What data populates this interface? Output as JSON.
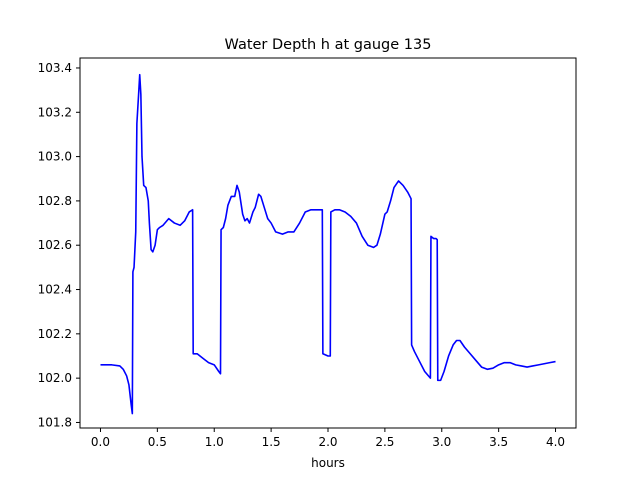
{
  "chart_data": {
    "type": "line",
    "title": "Water Depth h at gauge 135",
    "xlabel": "hours",
    "ylabel": "",
    "xlim": [
      -0.18,
      4.18
    ],
    "ylim": [
      101.775,
      103.445
    ],
    "grid": false,
    "x_ticks": [
      0.0,
      0.5,
      1.0,
      1.5,
      2.0,
      2.5,
      3.0,
      3.5,
      4.0
    ],
    "x_tick_labels": [
      "0.0",
      "0.5",
      "1.0",
      "1.5",
      "2.0",
      "2.5",
      "3.0",
      "3.5",
      "4.0"
    ],
    "y_ticks": [
      101.8,
      102.0,
      102.2,
      102.4,
      102.6,
      102.8,
      103.0,
      103.2,
      103.4
    ],
    "y_tick_labels": [
      "101.8",
      "102.0",
      "102.2",
      "102.4",
      "102.6",
      "102.8",
      "103.0",
      "103.2",
      "103.4"
    ],
    "series": [
      {
        "name": "",
        "color": "#0000ff",
        "points": [
          [
            0.0,
            102.06
          ],
          [
            0.1,
            102.06
          ],
          [
            0.17,
            102.055
          ],
          [
            0.2,
            102.04
          ],
          [
            0.23,
            102.01
          ],
          [
            0.25,
            101.97
          ],
          [
            0.27,
            101.88
          ],
          [
            0.28,
            101.84
          ],
          [
            0.285,
            102.48
          ],
          [
            0.295,
            102.5
          ],
          [
            0.31,
            102.66
          ],
          [
            0.32,
            103.15
          ],
          [
            0.335,
            103.28
          ],
          [
            0.345,
            103.37
          ],
          [
            0.355,
            103.28
          ],
          [
            0.365,
            103.0
          ],
          [
            0.38,
            102.87
          ],
          [
            0.4,
            102.86
          ],
          [
            0.42,
            102.8
          ],
          [
            0.43,
            102.7
          ],
          [
            0.445,
            102.58
          ],
          [
            0.46,
            102.57
          ],
          [
            0.48,
            102.6
          ],
          [
            0.5,
            102.67
          ],
          [
            0.52,
            102.68
          ],
          [
            0.55,
            102.69
          ],
          [
            0.6,
            102.72
          ],
          [
            0.65,
            102.7
          ],
          [
            0.7,
            102.69
          ],
          [
            0.74,
            102.71
          ],
          [
            0.78,
            102.75
          ],
          [
            0.81,
            102.76
          ],
          [
            0.815,
            102.11
          ],
          [
            0.85,
            102.11
          ],
          [
            0.9,
            102.09
          ],
          [
            0.95,
            102.07
          ],
          [
            1.0,
            102.06
          ],
          [
            1.04,
            102.03
          ],
          [
            1.055,
            102.02
          ],
          [
            1.06,
            102.67
          ],
          [
            1.08,
            102.68
          ],
          [
            1.1,
            102.72
          ],
          [
            1.12,
            102.78
          ],
          [
            1.15,
            102.82
          ],
          [
            1.18,
            102.82
          ],
          [
            1.2,
            102.87
          ],
          [
            1.22,
            102.84
          ],
          [
            1.25,
            102.74
          ],
          [
            1.27,
            102.71
          ],
          [
            1.29,
            102.72
          ],
          [
            1.31,
            102.7
          ],
          [
            1.34,
            102.75
          ],
          [
            1.36,
            102.77
          ],
          [
            1.39,
            102.83
          ],
          [
            1.41,
            102.82
          ],
          [
            1.44,
            102.77
          ],
          [
            1.47,
            102.72
          ],
          [
            1.5,
            102.7
          ],
          [
            1.54,
            102.66
          ],
          [
            1.6,
            102.65
          ],
          [
            1.65,
            102.66
          ],
          [
            1.7,
            102.66
          ],
          [
            1.75,
            102.7
          ],
          [
            1.8,
            102.75
          ],
          [
            1.85,
            102.76
          ],
          [
            1.9,
            102.76
          ],
          [
            1.95,
            102.76
          ],
          [
            1.955,
            102.11
          ],
          [
            2.0,
            102.1
          ],
          [
            2.02,
            102.1
          ],
          [
            2.025,
            102.75
          ],
          [
            2.06,
            102.76
          ],
          [
            2.1,
            102.76
          ],
          [
            2.15,
            102.75
          ],
          [
            2.2,
            102.73
          ],
          [
            2.25,
            102.7
          ],
          [
            2.3,
            102.64
          ],
          [
            2.35,
            102.6
          ],
          [
            2.4,
            102.59
          ],
          [
            2.43,
            102.6
          ],
          [
            2.46,
            102.65
          ],
          [
            2.5,
            102.74
          ],
          [
            2.52,
            102.75
          ],
          [
            2.55,
            102.8
          ],
          [
            2.58,
            102.86
          ],
          [
            2.62,
            102.89
          ],
          [
            2.66,
            102.87
          ],
          [
            2.7,
            102.84
          ],
          [
            2.73,
            102.81
          ],
          [
            2.735,
            102.15
          ],
          [
            2.76,
            102.12
          ],
          [
            2.8,
            102.08
          ],
          [
            2.85,
            102.03
          ],
          [
            2.9,
            102.0
          ],
          [
            2.905,
            102.64
          ],
          [
            2.93,
            102.63
          ],
          [
            2.95,
            102.63
          ],
          [
            2.96,
            102.625
          ],
          [
            2.965,
            101.99
          ],
          [
            2.99,
            101.99
          ],
          [
            3.02,
            102.03
          ],
          [
            3.06,
            102.1
          ],
          [
            3.1,
            102.15
          ],
          [
            3.13,
            102.17
          ],
          [
            3.16,
            102.17
          ],
          [
            3.2,
            102.14
          ],
          [
            3.25,
            102.11
          ],
          [
            3.3,
            102.08
          ],
          [
            3.35,
            102.05
          ],
          [
            3.4,
            102.04
          ],
          [
            3.45,
            102.045
          ],
          [
            3.5,
            102.06
          ],
          [
            3.55,
            102.07
          ],
          [
            3.6,
            102.07
          ],
          [
            3.65,
            102.06
          ],
          [
            3.7,
            102.055
          ],
          [
            3.75,
            102.05
          ],
          [
            3.8,
            102.055
          ],
          [
            3.85,
            102.06
          ],
          [
            3.9,
            102.065
          ],
          [
            3.95,
            102.07
          ],
          [
            4.0,
            102.075
          ]
        ]
      }
    ]
  }
}
